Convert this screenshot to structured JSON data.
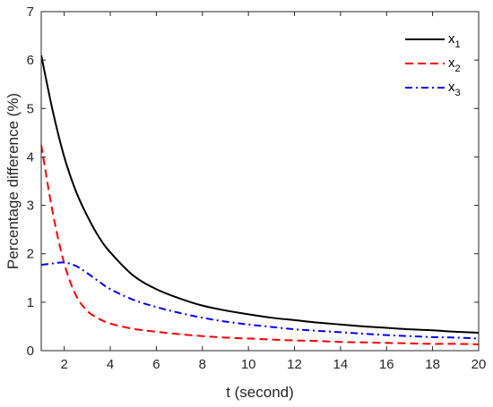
{
  "chart_data": {
    "type": "line",
    "xlabel": "t (second)",
    "ylabel": "Percentage difference (%)",
    "xlim": [
      1,
      20
    ],
    "ylim": [
      0,
      7
    ],
    "x_ticks": [
      2,
      4,
      6,
      8,
      10,
      12,
      14,
      16,
      18,
      20
    ],
    "y_ticks": [
      0,
      1,
      2,
      3,
      4,
      5,
      6,
      7
    ],
    "grid": false,
    "legend_placement": "top-right",
    "series": [
      {
        "name": "x",
        "subscript": "1",
        "color": "#000000",
        "style": "solid",
        "x": [
          1,
          1.5,
          2,
          2.5,
          3,
          3.5,
          4,
          5,
          6,
          7,
          8,
          9,
          10,
          11,
          12,
          13,
          14,
          15,
          16,
          17,
          18,
          19,
          20
        ],
        "y": [
          6.1,
          4.95,
          4.0,
          3.3,
          2.78,
          2.35,
          2.03,
          1.55,
          1.27,
          1.08,
          0.93,
          0.83,
          0.75,
          0.68,
          0.63,
          0.58,
          0.54,
          0.5,
          0.47,
          0.44,
          0.42,
          0.39,
          0.37
        ]
      },
      {
        "name": "x",
        "subscript": "2",
        "color": "#ff0000",
        "style": "dashed",
        "x": [
          1,
          1.5,
          2,
          2.5,
          3,
          3.5,
          4,
          5,
          6,
          7,
          8,
          9,
          10,
          11,
          12,
          13,
          14,
          15,
          16,
          17,
          18,
          19,
          20
        ],
        "y": [
          4.25,
          2.85,
          1.8,
          1.15,
          0.82,
          0.66,
          0.56,
          0.45,
          0.39,
          0.34,
          0.3,
          0.27,
          0.25,
          0.23,
          0.21,
          0.2,
          0.18,
          0.17,
          0.16,
          0.15,
          0.14,
          0.14,
          0.13
        ]
      },
      {
        "name": "x",
        "subscript": "3",
        "color": "#0000ff",
        "style": "dashdot",
        "x": [
          1,
          1.5,
          2,
          2.5,
          3,
          3.5,
          4,
          5,
          6,
          7,
          8,
          9,
          10,
          11,
          12,
          13,
          14,
          15,
          16,
          17,
          18,
          19,
          20
        ],
        "y": [
          1.77,
          1.8,
          1.82,
          1.75,
          1.6,
          1.43,
          1.27,
          1.05,
          0.9,
          0.78,
          0.68,
          0.6,
          0.54,
          0.49,
          0.44,
          0.41,
          0.38,
          0.35,
          0.32,
          0.3,
          0.28,
          0.27,
          0.25
        ]
      }
    ]
  }
}
